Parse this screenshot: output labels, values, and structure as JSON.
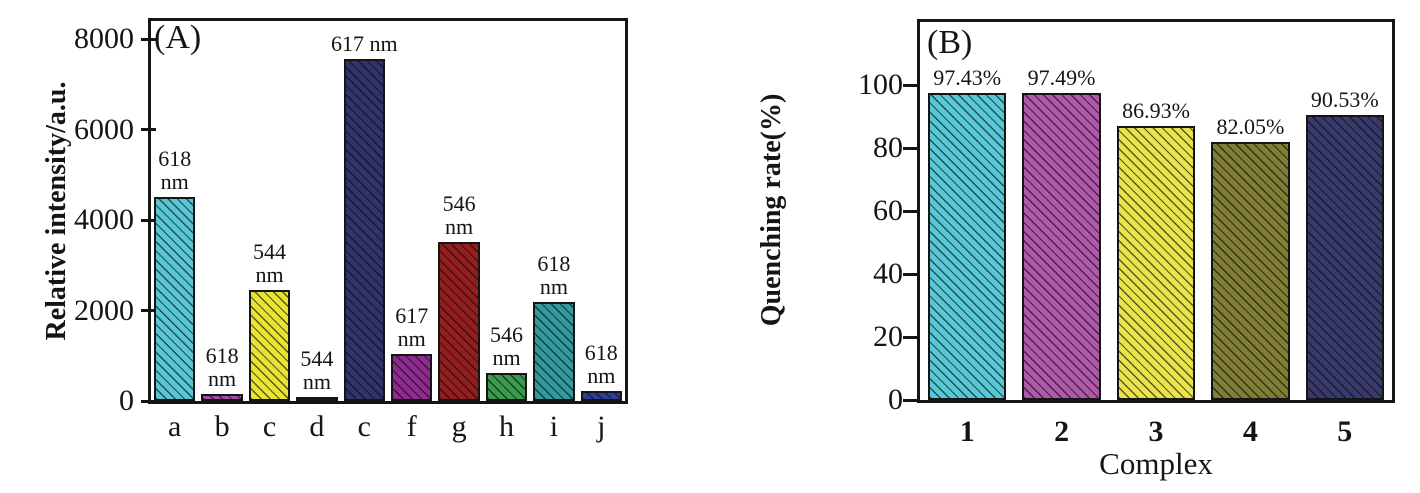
{
  "figure": {
    "hatch_color": "#151515",
    "axis_color": "#151515",
    "background": "#ffffff"
  },
  "chart_data": [
    {
      "type": "bar",
      "panel_label": "(A)",
      "title": "",
      "ylabel": "Relative intensity/a.u.",
      "xlabel": "",
      "categories": [
        "a",
        "b",
        "c",
        "d",
        "c",
        "f",
        "g",
        "h",
        "i",
        "j"
      ],
      "values": [
        4520,
        150,
        2460,
        80,
        7560,
        1040,
        3520,
        620,
        2180,
        220
      ],
      "bar_labels": [
        "618\nnm",
        "618\nnm",
        "544\nnm",
        "544\nnm",
        "617 nm",
        "617\nnm",
        "546\nnm",
        "546\nnm",
        "618\nnm",
        "618\nnm"
      ],
      "bar_colors": [
        "#58c6d4",
        "#a64ca6",
        "#e9e432",
        "#aaa838",
        "#32336b",
        "#8f2a90",
        "#941d1d",
        "#3a9a4e",
        "#309a9d",
        "#2f3d9a"
      ],
      "yticks": [
        0,
        2000,
        4000,
        6000,
        8000
      ],
      "ylim": [
        0,
        8400
      ],
      "grid": false,
      "legend": null,
      "hatch": "diagonal-backslash"
    },
    {
      "type": "bar",
      "panel_label": "(B)",
      "title": "",
      "ylabel": "Quenching rate(%)",
      "xlabel": "Complex",
      "categories": [
        "1",
        "2",
        "3",
        "4",
        "5"
      ],
      "values": [
        97.43,
        97.49,
        86.93,
        82.05,
        90.53
      ],
      "bar_labels": [
        "97.43%",
        "97.49%",
        "86.93%",
        "82.05%",
        "90.53%"
      ],
      "bar_colors": [
        "#57c8d6",
        "#b059ab",
        "#e9e44b",
        "#807d35",
        "#383a6c"
      ],
      "yticks": [
        0,
        20,
        40,
        60,
        80,
        100
      ],
      "ylim": [
        0,
        120
      ],
      "grid": false,
      "legend": null,
      "hatch": "diagonal-backslash"
    }
  ]
}
